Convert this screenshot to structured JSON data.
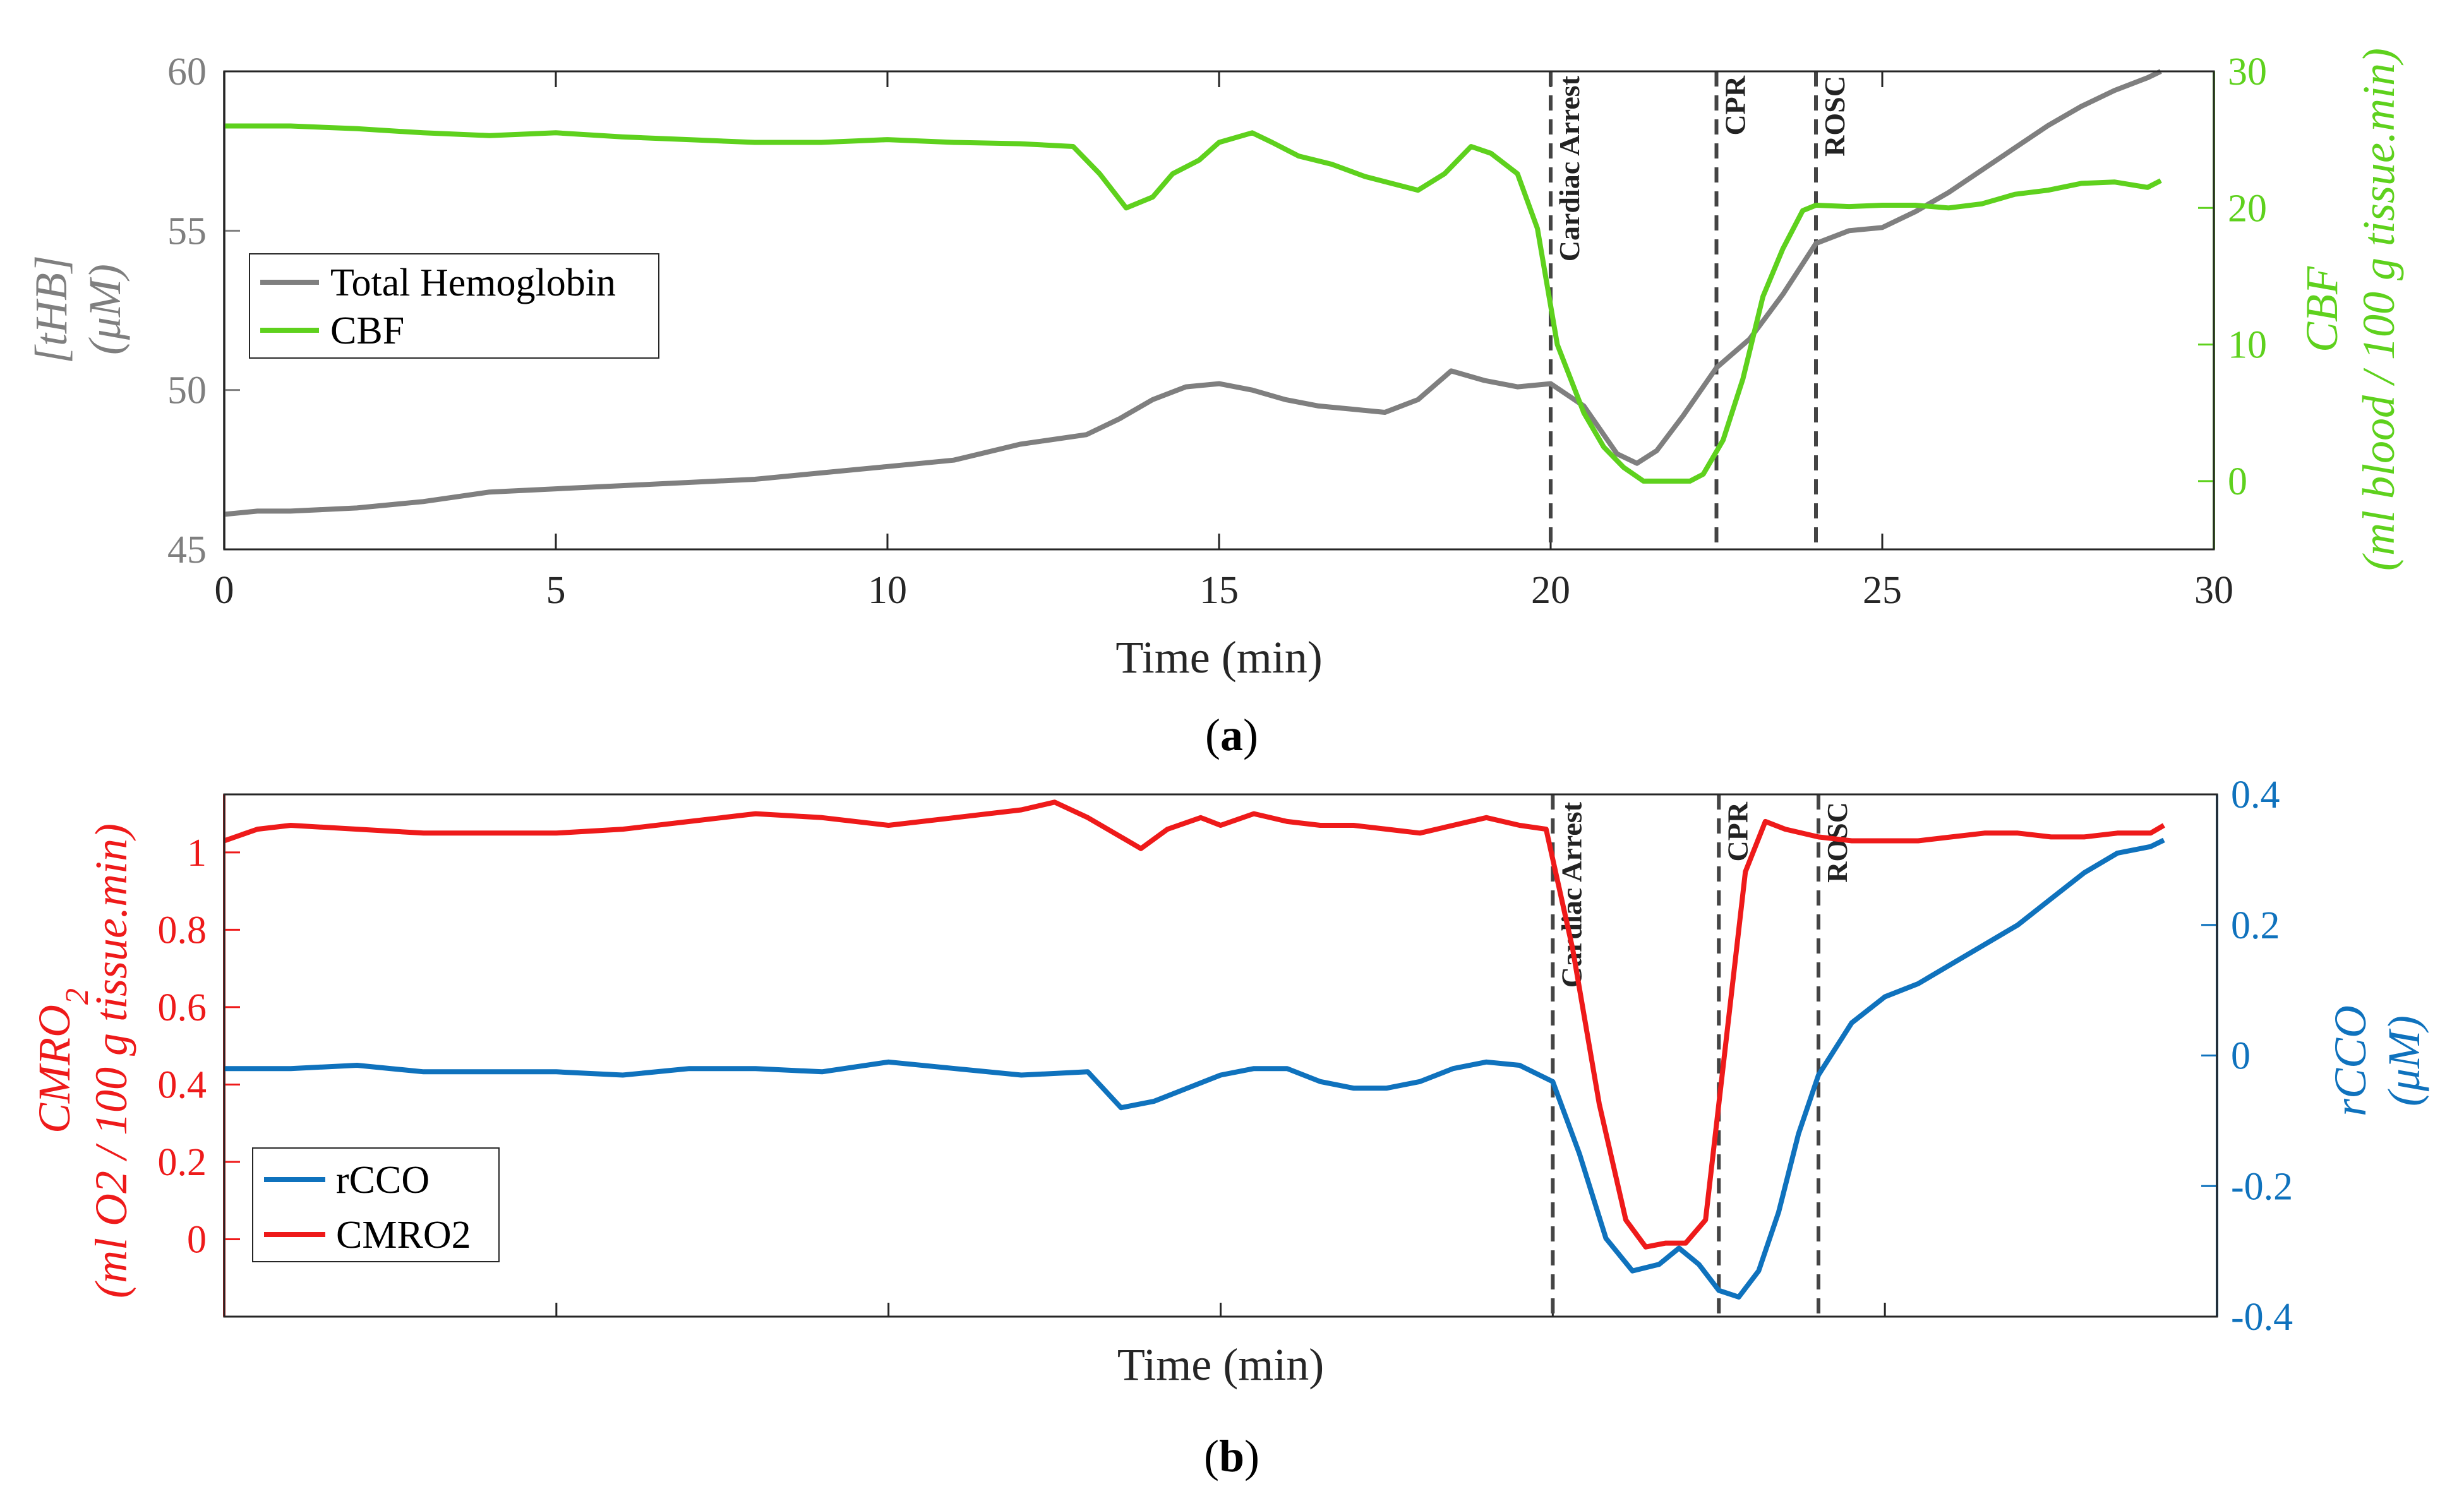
{
  "colors": {
    "thb": "#7f7f7f",
    "cbf": "#5ed11d",
    "rcco": "#0f72bd",
    "cmro2": "#ee1a1a",
    "event_line": "#444444",
    "axis": "#262626"
  },
  "chart_data": [
    {
      "type": "line",
      "panel_label": "a",
      "xlabel": "Time (min)",
      "ylabel": "[tHB] (μM)",
      "ylabel_left_line1": "[tHB]",
      "ylabel_left_line2": "(μM)",
      "ylabel_right": "CBF (ml blood / 100 g tissue.min)",
      "ylabel_right_line1": "CBF",
      "ylabel_right_line2": "(ml blood / 100 g tissue.min)",
      "xlim": [
        0,
        30
      ],
      "ylim_left": [
        45,
        60
      ],
      "ylim_right": [
        -5,
        30
      ],
      "xticks": [
        "0",
        "5",
        "10",
        "15",
        "20",
        "25",
        "30"
      ],
      "yticks_left": [
        "45",
        "50",
        "55",
        "60"
      ],
      "yticks_right": [
        "0",
        "10",
        "20",
        "30"
      ],
      "legend": [
        "Total Hemoglobin",
        "CBF"
      ],
      "legend_position": "upper-left",
      "events": [
        {
          "label": "Cardiac Arrest",
          "x": 20.0
        },
        {
          "label": "CPR",
          "x": 22.5
        },
        {
          "label": "ROSC",
          "x": 24.0
        }
      ],
      "series": [
        {
          "name": "Total Hemoglobin",
          "axis": "left",
          "x": [
            0,
            0.5,
            1,
            2,
            3,
            4,
            5,
            6,
            7,
            8,
            9,
            10,
            11,
            12,
            13,
            13.5,
            14,
            14.5,
            15,
            15.5,
            16,
            16.5,
            17,
            17.5,
            18,
            18.5,
            19,
            19.5,
            20,
            20.5,
            21,
            21.3,
            21.6,
            22,
            22.5,
            23,
            23.5,
            24,
            24.5,
            25,
            25.5,
            26,
            26.5,
            27,
            27.5,
            28,
            28.5,
            29,
            29.2
          ],
          "values": [
            46.1,
            46.2,
            46.2,
            46.3,
            46.5,
            46.8,
            46.9,
            47.0,
            47.1,
            47.2,
            47.4,
            47.6,
            47.8,
            48.3,
            48.6,
            49.1,
            49.7,
            50.1,
            50.2,
            50.0,
            49.7,
            49.5,
            49.4,
            49.3,
            49.7,
            50.6,
            50.3,
            50.1,
            50.2,
            49.5,
            48.0,
            47.7,
            48.1,
            49.2,
            50.7,
            51.6,
            53.0,
            54.6,
            55.0,
            55.1,
            55.6,
            56.2,
            56.9,
            57.6,
            58.3,
            58.9,
            59.4,
            59.8,
            60.0
          ]
        },
        {
          "name": "CBF",
          "axis": "right",
          "x": [
            0,
            1,
            2,
            3,
            4,
            5,
            6,
            7,
            8,
            9,
            10,
            11,
            12,
            12.8,
            13.2,
            13.6,
            14,
            14.3,
            14.7,
            15,
            15.5,
            15.8,
            16.2,
            16.7,
            17.2,
            17.6,
            18,
            18.4,
            18.8,
            19.1,
            19.5,
            19.8,
            20.1,
            20.5,
            20.8,
            21.1,
            21.4,
            21.8,
            22.1,
            22.3,
            22.6,
            22.9,
            23.2,
            23.5,
            23.8,
            24,
            24.5,
            25,
            25.5,
            26,
            26.5,
            27,
            27.5,
            28,
            28.5,
            29,
            29.2
          ],
          "values": [
            26.0,
            26.0,
            25.8,
            25.5,
            25.3,
            25.5,
            25.2,
            25.0,
            24.8,
            24.8,
            25.0,
            24.8,
            24.7,
            24.5,
            22.5,
            20.0,
            20.8,
            22.5,
            23.5,
            24.8,
            25.5,
            24.8,
            23.8,
            23.2,
            22.3,
            21.8,
            21.3,
            22.5,
            24.5,
            24.0,
            22.5,
            18.5,
            10.0,
            5.0,
            2.5,
            1.0,
            0.0,
            0.0,
            0.0,
            0.5,
            3.0,
            7.5,
            13.5,
            17.0,
            19.8,
            20.2,
            20.1,
            20.2,
            20.2,
            20.0,
            20.3,
            21.0,
            21.3,
            21.8,
            21.9,
            21.5,
            22.0
          ]
        }
      ]
    },
    {
      "type": "line",
      "panel_label": "b",
      "xlabel": "Time (min)",
      "ylabel": "CMRO2 (ml O2 / 100 g tissue.min)",
      "ylabel_left_main": "CMRO",
      "ylabel_left_sub": "2",
      "ylabel_left_line2": "(ml O2 / 100 g tissue.min)",
      "ylabel_right": "rCCO (μM)",
      "ylabel_right_line1": "rCCO",
      "ylabel_right_line2": "(μM)",
      "xlim": [
        0,
        30
      ],
      "ylim_left": [
        -0.2,
        1.15
      ],
      "ylim_right": [
        -0.4,
        0.4
      ],
      "yticks_left": [
        "0",
        "0.2",
        "0.4",
        "0.6",
        "0.8",
        "1"
      ],
      "yticks_right": [
        "-0.4",
        "-0.2",
        "0",
        "0.2",
        "0.4"
      ],
      "legend": [
        "rCCO",
        "CMRO2"
      ],
      "legend_position": "lower-left",
      "events": [
        {
          "label": "Cardiac Arrest",
          "x": 20.0
        },
        {
          "label": "CPR",
          "x": 22.5
        },
        {
          "label": "ROSC",
          "x": 24.0
        }
      ],
      "series": [
        {
          "name": "rCCO",
          "axis": "right",
          "x": [
            0,
            1,
            2,
            3,
            4,
            5,
            6,
            7,
            8,
            9,
            10,
            11,
            12,
            13,
            13.5,
            14,
            14.5,
            15,
            15.5,
            16,
            16.5,
            17,
            17.5,
            18,
            18.5,
            19,
            19.5,
            20,
            20.4,
            20.8,
            21.2,
            21.6,
            21.9,
            22.2,
            22.5,
            22.8,
            23.1,
            23.4,
            23.7,
            24,
            24.5,
            25,
            25.5,
            26,
            26.5,
            27,
            27.5,
            28,
            28.5,
            29,
            29.2
          ],
          "values": [
            -0.02,
            -0.02,
            -0.015,
            -0.025,
            -0.025,
            -0.025,
            -0.03,
            -0.02,
            -0.02,
            -0.025,
            -0.01,
            -0.02,
            -0.03,
            -0.025,
            -0.08,
            -0.07,
            -0.05,
            -0.03,
            -0.02,
            -0.02,
            -0.04,
            -0.05,
            -0.05,
            -0.04,
            -0.02,
            -0.01,
            -0.015,
            -0.04,
            -0.15,
            -0.28,
            -0.33,
            -0.32,
            -0.295,
            -0.32,
            -0.36,
            -0.37,
            -0.33,
            -0.24,
            -0.12,
            -0.03,
            0.05,
            0.09,
            0.11,
            0.14,
            0.17,
            0.2,
            0.24,
            0.28,
            0.31,
            0.32,
            0.33
          ]
        },
        {
          "name": "CMRO2",
          "axis": "left",
          "x": [
            0,
            0.5,
            1,
            2,
            3,
            4,
            5,
            6,
            7,
            8,
            9,
            10,
            11,
            12,
            12.5,
            13,
            13.5,
            13.8,
            14.2,
            14.7,
            15,
            15.5,
            16,
            16.5,
            17,
            17.5,
            18,
            18.5,
            19,
            19.5,
            19.9,
            20.3,
            20.7,
            21.1,
            21.4,
            21.7,
            22,
            22.3,
            22.6,
            22.9,
            23.2,
            23.5,
            24,
            24.5,
            25,
            25.5,
            26,
            26.5,
            27,
            27.5,
            28,
            28.5,
            29,
            29.2
          ],
          "values": [
            1.03,
            1.06,
            1.07,
            1.06,
            1.05,
            1.05,
            1.05,
            1.06,
            1.08,
            1.1,
            1.09,
            1.07,
            1.09,
            1.11,
            1.13,
            1.09,
            1.04,
            1.01,
            1.06,
            1.09,
            1.07,
            1.1,
            1.08,
            1.07,
            1.07,
            1.06,
            1.05,
            1.07,
            1.09,
            1.07,
            1.06,
            0.75,
            0.35,
            0.05,
            -0.02,
            -0.01,
            -0.01,
            0.05,
            0.5,
            0.95,
            1.08,
            1.06,
            1.04,
            1.03,
            1.03,
            1.03,
            1.04,
            1.05,
            1.05,
            1.04,
            1.04,
            1.05,
            1.05,
            1.07
          ]
        }
      ]
    }
  ]
}
